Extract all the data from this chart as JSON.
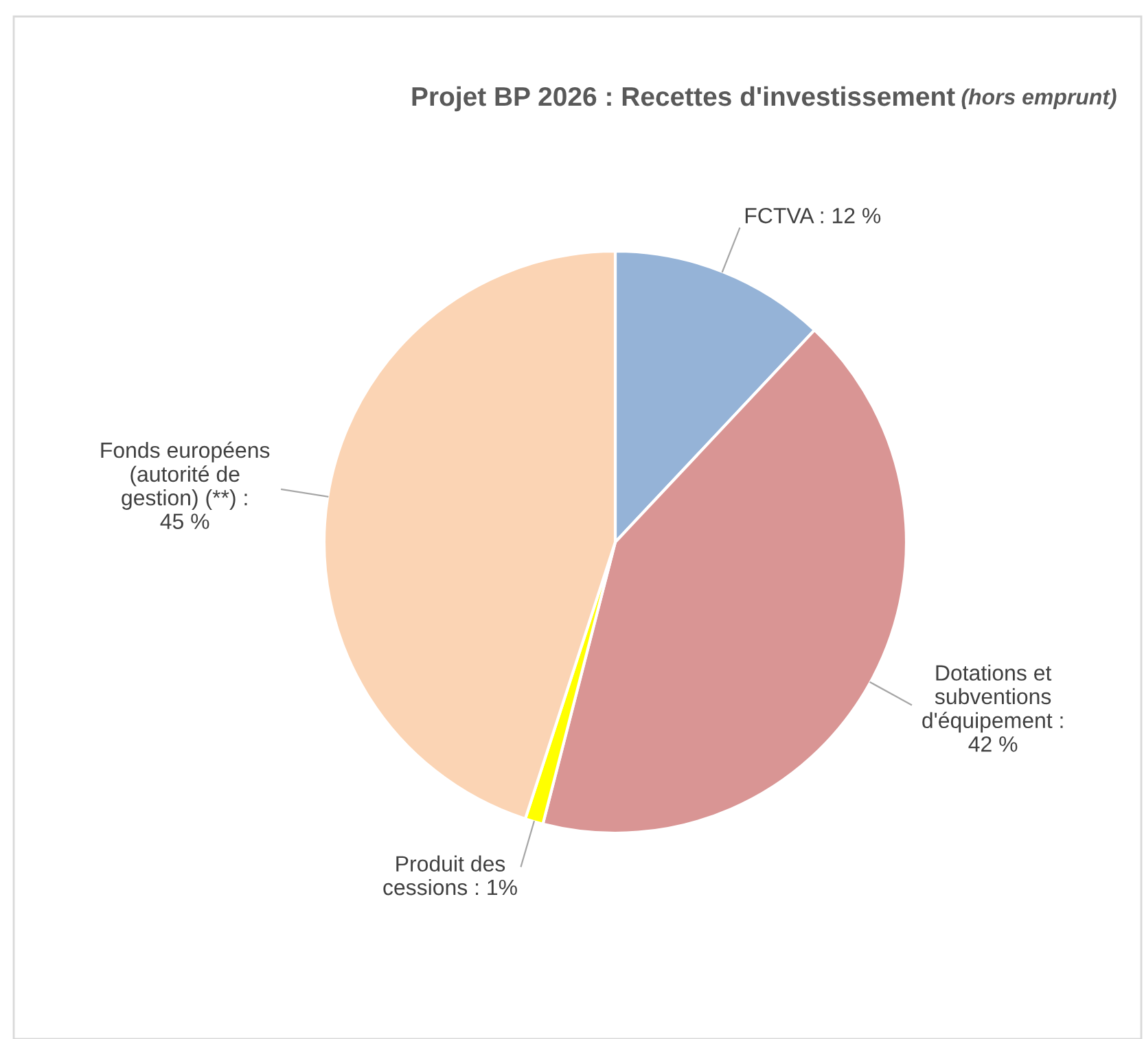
{
  "chart_data": {
    "type": "pie",
    "title": "Projet BP 2026 : Recettes d'investissement",
    "subtitle": "(hors emprunt)",
    "categories": [
      "FCTVA : 12 %",
      "Dotations et\nsubventions\nd'équipement :\n42 %",
      "Produit des\ncessions : 1%",
      "Fonds européens\n(autorité de\ngestion) (**) :\n45 %"
    ],
    "values": [
      12,
      42,
      1,
      45
    ],
    "colors": [
      "#95b3d7",
      "#d99594",
      "#ffff00",
      "#fbd4b4"
    ],
    "legend": false
  }
}
